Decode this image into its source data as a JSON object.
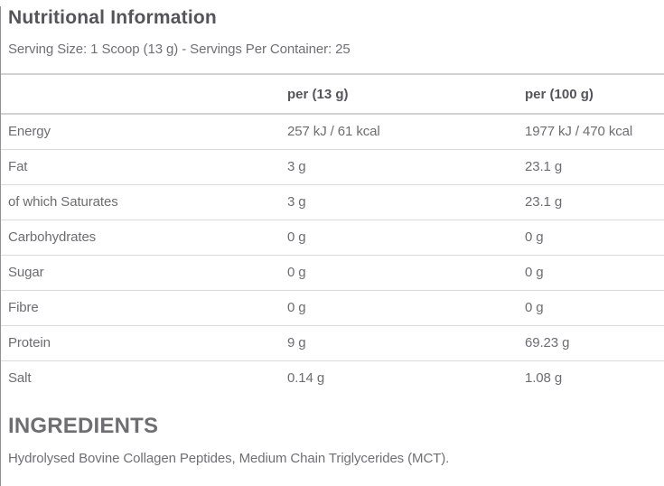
{
  "colors": {
    "background": "#ffffff",
    "title_text": "#54555a",
    "body_text": "#6c6d71",
    "separator_light": "#dadada",
    "separator_header": "#d2d2d2",
    "left_border": "#919194"
  },
  "header": {
    "title": "Nutritional Information",
    "serving_info": "Serving Size: 1 Scoop (13 g) - Servings Per Container: 25"
  },
  "table": {
    "columns": [
      "",
      "per (13 g)",
      "per (100 g)"
    ],
    "rows": [
      {
        "label": "Energy",
        "per_serving": "257 kJ / 61 kcal",
        "per_100g": "1977 kJ / 470 kcal"
      },
      {
        "label": "Fat",
        "per_serving": "3 g",
        "per_100g": "23.1 g"
      },
      {
        "label": "of which Saturates",
        "per_serving": "3 g",
        "per_100g": "23.1 g"
      },
      {
        "label": "Carbohydrates",
        "per_serving": "0 g",
        "per_100g": "0 g"
      },
      {
        "label": "Sugar",
        "per_serving": "0 g",
        "per_100g": "0 g"
      },
      {
        "label": "Fibre",
        "per_serving": "0 g",
        "per_100g": "0 g"
      },
      {
        "label": "Protein",
        "per_serving": "9 g",
        "per_100g": "69.23 g"
      },
      {
        "label": "Salt",
        "per_serving": "0.14 g",
        "per_100g": "1.08 g"
      }
    ]
  },
  "ingredients": {
    "heading": "INGREDIENTS",
    "text": "Hydrolysed Bovine Collagen Peptides, Medium Chain Triglycerides (MCT)."
  }
}
